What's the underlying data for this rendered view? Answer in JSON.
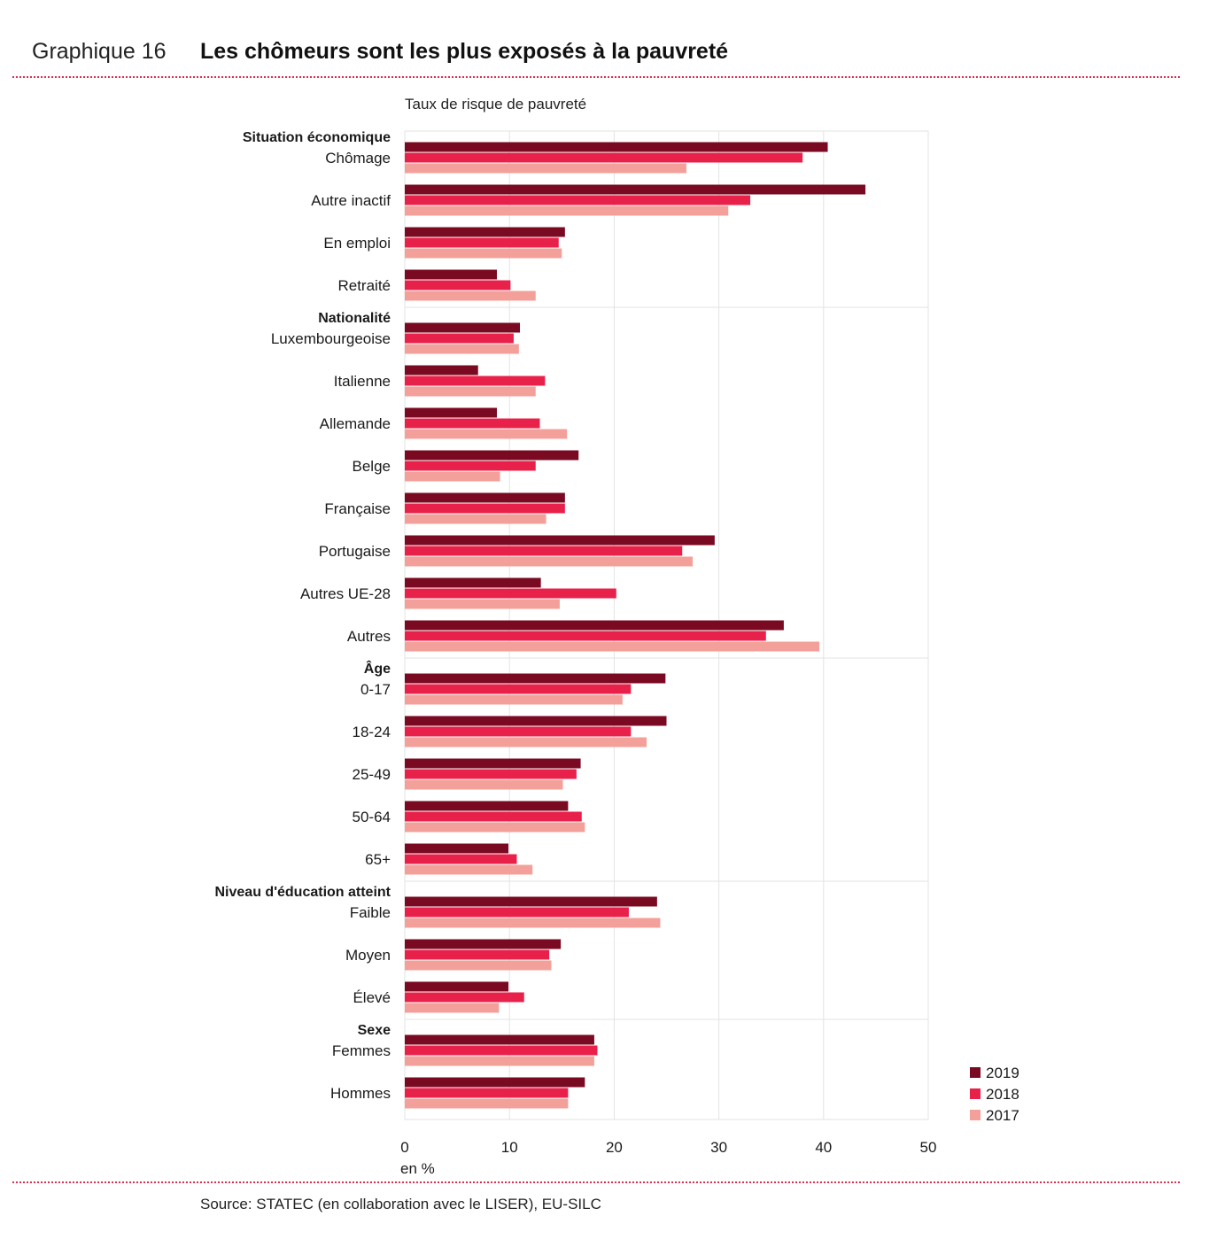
{
  "header": {
    "graph_number": "Graphique 16",
    "title": "Les chômeurs sont les plus exposés à la pauvreté"
  },
  "footer": {
    "source": "Source: STATEC (en collaboration avec le LISER), EU-SILC"
  },
  "colors": {
    "accent_line": "#d9304f",
    "series_2019": "#7a0a22",
    "series_2018": "#e8214a",
    "series_2017": "#f4a09a",
    "grid": "#e3e3e3"
  },
  "chart_data": {
    "type": "bar",
    "orientation": "horizontal",
    "title": "",
    "subtitle": "Taux de risque de pauvreté",
    "xlabel": "en %",
    "ylabel": "",
    "xlim": [
      0,
      50
    ],
    "xticks": [
      0,
      10,
      20,
      30,
      40,
      50
    ],
    "grid": true,
    "legend_position": "bottom-right",
    "groups": [
      {
        "name": "Situation économique",
        "categories": [
          {
            "label": "Chômage",
            "values": {
              "2019": 40.4,
              "2018": 38.0,
              "2017": 26.9
            }
          },
          {
            "label": "Autre inactif",
            "values": {
              "2019": 44.0,
              "2018": 33.0,
              "2017": 30.9
            }
          },
          {
            "label": "En emploi",
            "values": {
              "2019": 15.3,
              "2018": 14.7,
              "2017": 15.0
            }
          },
          {
            "label": "Retraité",
            "values": {
              "2019": 8.8,
              "2018": 10.1,
              "2017": 12.5
            }
          }
        ]
      },
      {
        "name": "Nationalité",
        "categories": [
          {
            "label": "Luxembourgeoise",
            "values": {
              "2019": 11.0,
              "2018": 10.4,
              "2017": 10.9
            }
          },
          {
            "label": "Italienne",
            "values": {
              "2019": 7.0,
              "2018": 13.4,
              "2017": 12.5
            }
          },
          {
            "label": "Allemande",
            "values": {
              "2019": 8.8,
              "2018": 12.9,
              "2017": 15.5
            }
          },
          {
            "label": "Belge",
            "values": {
              "2019": 16.6,
              "2018": 12.5,
              "2017": 9.1
            }
          },
          {
            "label": "Française",
            "values": {
              "2019": 15.3,
              "2018": 15.3,
              "2017": 13.5
            }
          },
          {
            "label": "Portugaise",
            "values": {
              "2019": 29.6,
              "2018": 26.5,
              "2017": 27.5
            }
          },
          {
            "label": "Autres UE-28",
            "values": {
              "2019": 13.0,
              "2018": 20.2,
              "2017": 14.8
            }
          },
          {
            "label": "Autres",
            "values": {
              "2019": 36.2,
              "2018": 34.5,
              "2017": 39.6
            }
          }
        ]
      },
      {
        "name": "Âge",
        "categories": [
          {
            "label": "0-17",
            "values": {
              "2019": 24.9,
              "2018": 21.6,
              "2017": 20.8
            }
          },
          {
            "label": "18-24",
            "values": {
              "2019": 25.0,
              "2018": 21.6,
              "2017": 23.1
            }
          },
          {
            "label": "25-49",
            "values": {
              "2019": 16.8,
              "2018": 16.4,
              "2017": 15.1
            }
          },
          {
            "label": "50-64",
            "values": {
              "2019": 15.6,
              "2018": 16.9,
              "2017": 17.2
            }
          },
          {
            "label": "65+",
            "values": {
              "2019": 9.9,
              "2018": 10.7,
              "2017": 12.2
            }
          }
        ]
      },
      {
        "name": "Niveau d'éducation atteint",
        "categories": [
          {
            "label": "Faible",
            "values": {
              "2019": 24.1,
              "2018": 21.4,
              "2017": 24.4
            }
          },
          {
            "label": "Moyen",
            "values": {
              "2019": 14.9,
              "2018": 13.8,
              "2017": 14.0
            }
          },
          {
            "label": "Élevé",
            "values": {
              "2019": 9.9,
              "2018": 11.4,
              "2017": 9.0
            }
          }
        ]
      },
      {
        "name": "Sexe",
        "categories": [
          {
            "label": "Femmes",
            "values": {
              "2019": 18.1,
              "2018": 18.4,
              "2017": 18.1
            }
          },
          {
            "label": "Hommes",
            "values": {
              "2019": 17.2,
              "2018": 15.6,
              "2017": 15.6
            }
          }
        ]
      }
    ],
    "series": [
      {
        "name": "2019",
        "color": "#7a0a22"
      },
      {
        "name": "2018",
        "color": "#e8214a"
      },
      {
        "name": "2017",
        "color": "#f4a09a"
      }
    ]
  }
}
